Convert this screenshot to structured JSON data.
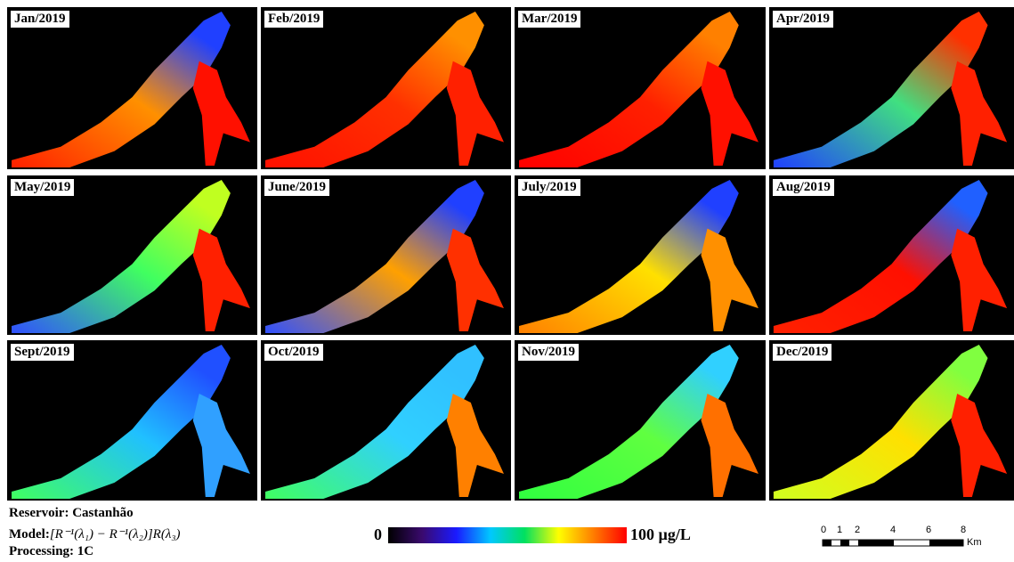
{
  "panels": [
    {
      "label": "Jan/2019"
    },
    {
      "label": "Feb/2019"
    },
    {
      "label": "Mar/2019"
    },
    {
      "label": "Apr/2019"
    },
    {
      "label": "May/2019"
    },
    {
      "label": "June/2019"
    },
    {
      "label": "July/2019"
    },
    {
      "label": "Aug/2019"
    },
    {
      "label": "Sept/2019"
    },
    {
      "label": "Oct/2019"
    },
    {
      "label": "Nov/2019"
    },
    {
      "label": "Dec/2019"
    }
  ],
  "footer": {
    "reservoir": "Reservoir: Castanhão",
    "model_label": "Model:",
    "model_formula": "[R⁻¹(λ₁) − R⁻¹(λ₂)]R(λ₃)",
    "processing": "Processing: 1C"
  },
  "colorbar": {
    "min_label": "0",
    "max_label": "100 µg/L"
  },
  "scale_bar": {
    "labels": [
      "0",
      "1",
      "2",
      "4",
      "6",
      "8"
    ],
    "unit": "Km"
  }
}
